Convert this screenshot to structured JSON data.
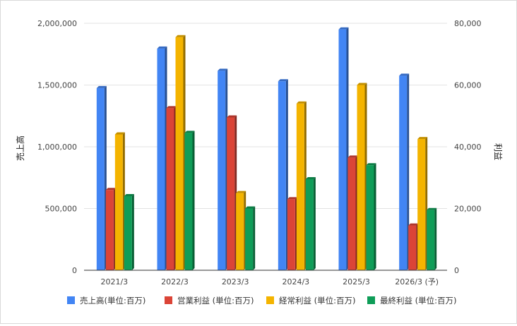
{
  "chart_data": {
    "type": "bar",
    "categories": [
      "2021/3",
      "2022/3",
      "2023/3",
      "2024/3",
      "2025/3",
      "2026/3 (予)"
    ],
    "ylabel_left": "売上高",
    "ylabel_right": "利益",
    "left_axis": {
      "ylim": [
        0,
        2000000
      ],
      "ticks": [
        "0",
        "500,000",
        "1,000,000",
        "1,500,000",
        "2,000,000"
      ]
    },
    "right_axis": {
      "ylim": [
        0,
        80000
      ],
      "ticks": [
        "0",
        "20,000",
        "40,000",
        "60,000",
        "80,000"
      ]
    },
    "grid": true,
    "legend_position": "bottom",
    "series": [
      {
        "name": "売上高(単位:百万)",
        "axis": "left",
        "color": "#4285f4",
        "values": [
          1475000,
          1795000,
          1615000,
          1530000,
          1950000,
          1575000
        ]
      },
      {
        "name": "営業利益 (単位:百万)",
        "axis": "right",
        "color": "#db4437",
        "values": [
          26000,
          52500,
          49500,
          23000,
          36500,
          14500
        ]
      },
      {
        "name": "経常利益 (単位:百万)",
        "axis": "right",
        "color": "#f4b400",
        "values": [
          44000,
          75500,
          25000,
          54000,
          60000,
          42500
        ]
      },
      {
        "name": "最終利益 (単位:百万)",
        "axis": "right",
        "color": "#0f9d58",
        "values": [
          24000,
          44500,
          20000,
          29500,
          34000,
          19500
        ]
      }
    ]
  }
}
